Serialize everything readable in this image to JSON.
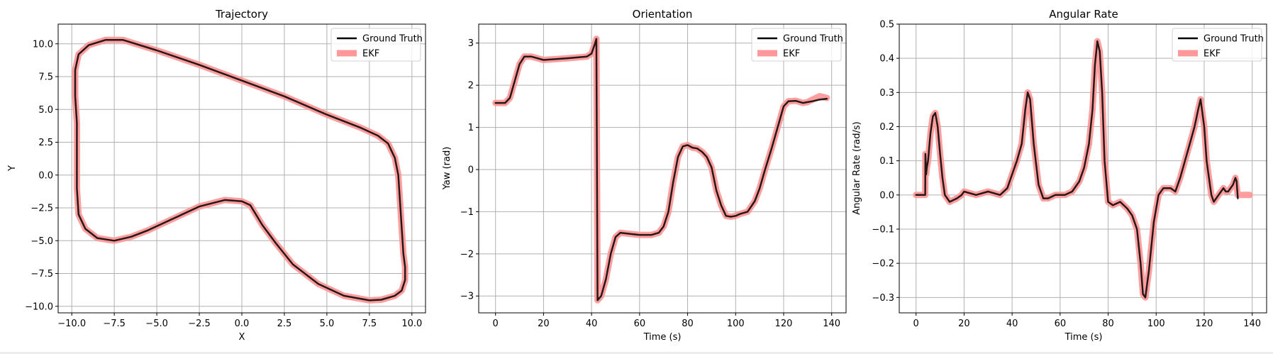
{
  "colors": {
    "ground_truth": "#000000",
    "ekf": "#ff9999"
  },
  "chart_data": [
    {
      "type": "line",
      "title": "Trajectory",
      "xlabel": "X",
      "ylabel": "Y",
      "xlim": [
        -10.8,
        10.8
      ],
      "ylim": [
        -10.5,
        11.5
      ],
      "xticks": [
        -10.0,
        -7.5,
        -5.0,
        -2.5,
        0.0,
        2.5,
        5.0,
        7.5,
        10.0
      ],
      "xtick_labels": [
        "−10.0",
        "−7.5",
        "−5.0",
        "−2.5",
        "0.0",
        "2.5",
        "5.0",
        "7.5",
        "10.0"
      ],
      "yticks": [
        -10.0,
        -7.5,
        -5.0,
        -2.5,
        0.0,
        2.5,
        5.0,
        7.5,
        10.0
      ],
      "ytick_labels": [
        "−10.0",
        "−7.5",
        "−5.0",
        "−2.5",
        "0.0",
        "2.5",
        "5.0",
        "7.5",
        "10.0"
      ],
      "grid": true,
      "legend": "top-right",
      "series": [
        {
          "name": "Ground Truth",
          "x": [
            9.2,
            9.3,
            9.4,
            9.5,
            9.6,
            9.6,
            9.4,
            9.0,
            8.2,
            7.5,
            6.0,
            4.5,
            3.0,
            2.0,
            1.2,
            0.5,
            0.0,
            -1.0,
            -2.5,
            -4.0,
            -5.5,
            -6.5,
            -7.5,
            -8.5,
            -9.2,
            -9.6,
            -9.7,
            -9.7,
            -9.7,
            -9.8,
            -9.8,
            -9.6,
            -9.0,
            -8.0,
            -7.0,
            -5.0,
            -2.5,
            0.0,
            2.5,
            5.0,
            7.0,
            8.0,
            8.6,
            9.0,
            9.2
          ],
          "y": [
            0.0,
            -2.0,
            -4.0,
            -6.0,
            -7.0,
            -8.0,
            -8.8,
            -9.2,
            -9.5,
            -9.55,
            -9.2,
            -8.3,
            -6.8,
            -5.2,
            -3.8,
            -2.3,
            -2.0,
            -1.9,
            -2.4,
            -3.3,
            -4.2,
            -4.7,
            -5.0,
            -4.8,
            -4.1,
            -3.0,
            -1.0,
            1.0,
            4.0,
            6.0,
            8.0,
            9.2,
            9.9,
            10.3,
            10.3,
            9.5,
            8.4,
            7.2,
            6.0,
            4.6,
            3.6,
            3.0,
            2.4,
            1.3,
            0.0
          ]
        },
        {
          "name": "EKF",
          "x": [
            9.2,
            9.3,
            9.4,
            9.5,
            9.6,
            9.6,
            9.4,
            9.0,
            8.2,
            7.5,
            6.0,
            4.5,
            3.0,
            2.0,
            1.2,
            0.5,
            0.0,
            -1.0,
            -2.5,
            -4.0,
            -5.5,
            -6.5,
            -7.5,
            -8.5,
            -9.2,
            -9.6,
            -9.7,
            -9.7,
            -9.7,
            -9.8,
            -9.8,
            -9.6,
            -9.0,
            -8.0,
            -7.0,
            -5.0,
            -2.5,
            0.0,
            2.5,
            5.0,
            7.0,
            8.0,
            8.6,
            9.0,
            9.2
          ],
          "y": [
            0.0,
            -2.0,
            -4.0,
            -6.0,
            -7.0,
            -8.0,
            -8.8,
            -9.2,
            -9.5,
            -9.55,
            -9.2,
            -8.3,
            -6.8,
            -5.2,
            -3.8,
            -2.3,
            -2.0,
            -1.9,
            -2.4,
            -3.3,
            -4.2,
            -4.7,
            -5.0,
            -4.8,
            -4.1,
            -3.0,
            -1.0,
            1.0,
            4.0,
            6.0,
            8.0,
            9.2,
            9.9,
            10.3,
            10.3,
            9.5,
            8.4,
            7.2,
            6.0,
            4.6,
            3.6,
            3.0,
            2.4,
            1.3,
            0.0
          ]
        }
      ]
    },
    {
      "type": "line",
      "title": "Orientation",
      "xlabel": "Time (s)",
      "ylabel": "Yaw (rad)",
      "xlim": [
        -7,
        146
      ],
      "ylim": [
        -3.4,
        3.45
      ],
      "xticks": [
        0,
        20,
        40,
        60,
        80,
        100,
        120,
        140
      ],
      "xtick_labels": [
        "0",
        "20",
        "40",
        "60",
        "80",
        "100",
        "120",
        "140"
      ],
      "yticks": [
        -3,
        -2,
        -1,
        0,
        1,
        2,
        3
      ],
      "ytick_labels": [
        "−3",
        "−2",
        "−1",
        "0",
        "1",
        "2",
        "3"
      ],
      "grid": true,
      "legend": "top-right",
      "series": [
        {
          "name": "Ground Truth",
          "x": [
            0,
            4,
            6,
            8,
            10,
            12,
            15,
            20,
            30,
            38,
            40,
            41.5,
            42,
            42.5,
            44,
            46,
            48,
            50,
            52,
            55,
            60,
            65,
            68,
            70,
            72,
            74,
            76,
            78,
            80,
            82,
            84,
            86,
            88,
            90,
            92,
            94,
            96,
            98,
            100,
            102,
            105,
            108,
            110,
            112,
            115,
            118,
            120,
            122,
            125,
            128,
            130,
            132,
            135,
            138
          ],
          "y": [
            1.58,
            1.58,
            1.7,
            2.1,
            2.5,
            2.68,
            2.68,
            2.6,
            2.64,
            2.68,
            2.75,
            3.0,
            3.1,
            -3.1,
            -3.0,
            -2.6,
            -2.0,
            -1.6,
            -1.5,
            -1.52,
            -1.55,
            -1.55,
            -1.5,
            -1.35,
            -1.0,
            -0.3,
            0.3,
            0.55,
            0.58,
            0.52,
            0.5,
            0.42,
            0.3,
            0.05,
            -0.5,
            -0.85,
            -1.1,
            -1.12,
            -1.1,
            -1.05,
            -1.0,
            -0.75,
            -0.45,
            -0.05,
            0.5,
            1.1,
            1.5,
            1.62,
            1.63,
            1.58,
            1.6,
            1.62,
            1.66,
            1.68
          ]
        },
        {
          "name": "EKF",
          "x": [
            0,
            4,
            6,
            8,
            10,
            12,
            15,
            20,
            30,
            38,
            40,
            41.5,
            42,
            42.5,
            44,
            46,
            48,
            50,
            52,
            55,
            60,
            65,
            68,
            70,
            72,
            74,
            76,
            78,
            80,
            82,
            84,
            86,
            88,
            90,
            92,
            94,
            96,
            98,
            100,
            102,
            105,
            108,
            110,
            112,
            115,
            118,
            120,
            122,
            125,
            128,
            130,
            132,
            135,
            138
          ],
          "y": [
            1.58,
            1.58,
            1.7,
            2.1,
            2.5,
            2.68,
            2.68,
            2.6,
            2.64,
            2.68,
            2.75,
            3.0,
            3.1,
            -3.1,
            -3.0,
            -2.6,
            -2.0,
            -1.6,
            -1.5,
            -1.52,
            -1.55,
            -1.55,
            -1.5,
            -1.35,
            -1.0,
            -0.3,
            0.3,
            0.55,
            0.58,
            0.52,
            0.5,
            0.42,
            0.3,
            0.05,
            -0.5,
            -0.85,
            -1.1,
            -1.12,
            -1.1,
            -1.05,
            -1.0,
            -0.75,
            -0.45,
            -0.05,
            0.5,
            1.1,
            1.5,
            1.62,
            1.63,
            1.58,
            1.6,
            1.66,
            1.74,
            1.7
          ]
        }
      ]
    },
    {
      "type": "line",
      "title": "Angular Rate",
      "xlabel": "Time (s)",
      "ylabel": "Angular Rate (rad/s)",
      "xlim": [
        -7,
        146
      ],
      "ylim": [
        -0.345,
        0.5
      ],
      "xticks": [
        0,
        20,
        40,
        60,
        80,
        100,
        120,
        140
      ],
      "xtick_labels": [
        "0",
        "20",
        "40",
        "60",
        "80",
        "100",
        "120",
        "140"
      ],
      "yticks": [
        -0.3,
        -0.2,
        -0.1,
        0.0,
        0.1,
        0.2,
        0.3,
        0.4,
        0.5
      ],
      "ytick_labels": [
        "−0.3",
        "−0.2",
        "−0.1",
        "0.0",
        "0.1",
        "0.2",
        "0.3",
        "0.4",
        "0.5"
      ],
      "grid": true,
      "legend": "top-right",
      "series": [
        {
          "name": "Ground Truth",
          "x": [
            0,
            3.8,
            3.9,
            4.2,
            4.5,
            5.0,
            6.0,
            7.0,
            8.0,
            9.0,
            10.0,
            11.0,
            12.0,
            14.0,
            17.0,
            19.0,
            20.0,
            25.0,
            30.0,
            35.0,
            38.0,
            40.0,
            42.0,
            44.0,
            45.5,
            46.5,
            47.5,
            49.0,
            51.0,
            53.0,
            55.0,
            58.0,
            62.0,
            65.0,
            68.0,
            70.0,
            72.0,
            73.5,
            74.5,
            75.5,
            76.5,
            77.5,
            78.5,
            80.0,
            82.0,
            85.0,
            88.0,
            90.0,
            92.0,
            93.5,
            94.5,
            95.5,
            97.0,
            99.0,
            101.0,
            103.0,
            106.0,
            108.0,
            110.0,
            112.0,
            114.0,
            116.0,
            117.5,
            118.5,
            120.0,
            121.0,
            122.0,
            123.0,
            124.0,
            125.0,
            126.0,
            127.0,
            128.0,
            129.0,
            130.0,
            131.0,
            132.0,
            133.0,
            133.5,
            134.0
          ],
          "y": [
            0.0,
            0.0,
            0.12,
            0.06,
            0.08,
            0.1,
            0.18,
            0.23,
            0.24,
            0.2,
            0.12,
            0.05,
            0.0,
            -0.02,
            -0.01,
            0.0,
            0.01,
            0.0,
            0.01,
            0.0,
            0.02,
            0.06,
            0.1,
            0.15,
            0.25,
            0.3,
            0.28,
            0.15,
            0.03,
            -0.01,
            -0.01,
            0.0,
            0.0,
            0.01,
            0.04,
            0.08,
            0.15,
            0.25,
            0.38,
            0.45,
            0.42,
            0.3,
            0.1,
            -0.02,
            -0.03,
            -0.02,
            -0.04,
            -0.06,
            -0.1,
            -0.2,
            -0.29,
            -0.3,
            -0.22,
            -0.08,
            0.0,
            0.02,
            0.02,
            0.01,
            0.05,
            0.1,
            0.15,
            0.2,
            0.25,
            0.28,
            0.2,
            0.1,
            0.05,
            0.0,
            -0.02,
            -0.01,
            0.0,
            0.01,
            0.02,
            0.01,
            0.01,
            0.02,
            0.03,
            0.05,
            0.04,
            -0.01
          ]
        },
        {
          "name": "EKF",
          "x": [
            0,
            3.8,
            3.9,
            4.2,
            4.5,
            5.0,
            6.0,
            7.0,
            8.0,
            9.0,
            10.0,
            11.0,
            12.0,
            14.0,
            17.0,
            19.0,
            20.0,
            25.0,
            30.0,
            35.0,
            38.0,
            40.0,
            42.0,
            44.0,
            45.5,
            46.5,
            47.5,
            49.0,
            51.0,
            53.0,
            55.0,
            58.0,
            62.0,
            65.0,
            68.0,
            70.0,
            72.0,
            73.5,
            74.5,
            75.5,
            76.5,
            77.5,
            78.5,
            80.0,
            82.0,
            85.0,
            88.0,
            90.0,
            92.0,
            93.5,
            94.5,
            95.5,
            97.0,
            99.0,
            101.0,
            103.0,
            106.0,
            108.0,
            110.0,
            112.0,
            114.0,
            116.0,
            117.5,
            118.5,
            120.0,
            121.0,
            122.0,
            123.0,
            124.0,
            125.0,
            126.0,
            127.0,
            128.0,
            129.0,
            130.0,
            131.0,
            132.0,
            133.0,
            134.0,
            136.0,
            139.0
          ],
          "y": [
            0.0,
            0.0,
            0.12,
            0.06,
            0.08,
            0.1,
            0.18,
            0.23,
            0.24,
            0.2,
            0.12,
            0.05,
            0.0,
            -0.02,
            -0.01,
            0.0,
            0.01,
            0.0,
            0.01,
            0.0,
            0.02,
            0.06,
            0.1,
            0.15,
            0.25,
            0.3,
            0.28,
            0.15,
            0.03,
            -0.01,
            -0.01,
            0.0,
            0.0,
            0.01,
            0.04,
            0.08,
            0.15,
            0.25,
            0.38,
            0.45,
            0.42,
            0.3,
            0.1,
            -0.02,
            -0.03,
            -0.02,
            -0.04,
            -0.06,
            -0.1,
            -0.2,
            -0.29,
            -0.3,
            -0.22,
            -0.08,
            0.0,
            0.02,
            0.02,
            0.01,
            0.05,
            0.1,
            0.15,
            0.2,
            0.25,
            0.28,
            0.2,
            0.1,
            0.05,
            0.0,
            -0.02,
            -0.01,
            0.0,
            0.01,
            0.02,
            0.01,
            0.01,
            0.02,
            0.03,
            0.05,
            0.0,
            0.0,
            0.0
          ]
        }
      ]
    }
  ]
}
